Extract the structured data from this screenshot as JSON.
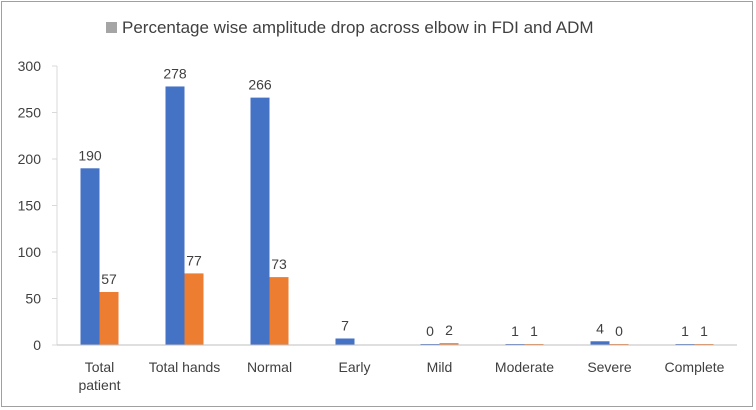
{
  "chart_data": {
    "type": "bar",
    "legend": {
      "placement": "top-center",
      "entries": [
        "Percentage wise amplitude drop across elbow in FDI and ADM"
      ]
    },
    "categories": [
      "Total patient",
      "Total hands",
      "Normal",
      "Early",
      "Mild",
      "Moderate",
      "Severe",
      "Complete"
    ],
    "series": [
      {
        "values": [
          190,
          278,
          266,
          7,
          0,
          1,
          4,
          1
        ],
        "color": "#4472c4"
      },
      {
        "values": [
          57,
          77,
          73,
          null,
          2,
          1,
          0,
          1
        ],
        "color": "#ed7d31"
      }
    ],
    "ylim": [
      0,
      300
    ],
    "yticks": [
      0,
      50,
      100,
      150,
      200,
      250,
      300
    ],
    "grid": false,
    "legend_marker_color": "#a5a5a5"
  }
}
